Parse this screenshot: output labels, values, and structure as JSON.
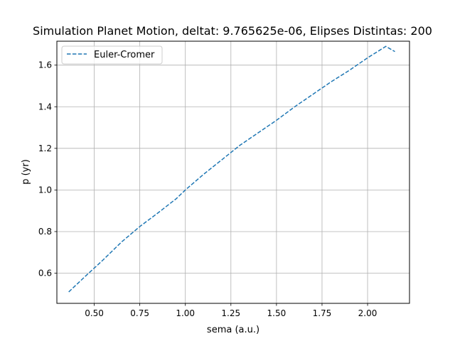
{
  "chart_data": {
    "type": "line",
    "title": "Simulation Planet Motion, deltat: 9.765625e-06, Elipses Distintas: 200",
    "xlabel": "sema (a.u.)",
    "ylabel": "p (yr)",
    "xlim": [
      0.295,
      2.23
    ],
    "ylim": [
      0.455,
      1.715
    ],
    "xticks": [
      0.5,
      0.75,
      1.0,
      1.25,
      1.5,
      1.75,
      2.0
    ],
    "xtick_labels": [
      "0.50",
      "0.75",
      "1.00",
      "1.25",
      "1.50",
      "1.75",
      "2.00"
    ],
    "yticks": [
      0.6,
      0.8,
      1.0,
      1.2,
      1.4,
      1.6
    ],
    "ytick_labels": [
      "0.6",
      "0.8",
      "1.0",
      "1.2",
      "1.4",
      "1.6"
    ],
    "grid": true,
    "legend_position": "upper-left",
    "series": [
      {
        "name": "Euler-Cromer",
        "style": "dashed",
        "color": "#1f77b4",
        "x": [
          0.36,
          0.45,
          0.55,
          0.65,
          0.75,
          0.85,
          0.95,
          1.0,
          1.1,
          1.2,
          1.3,
          1.4,
          1.5,
          1.6,
          1.7,
          1.8,
          1.9,
          2.0,
          2.1,
          2.15
        ],
        "y": [
          0.51,
          0.584,
          0.665,
          0.75,
          0.824,
          0.89,
          0.958,
          1.0,
          1.075,
          1.145,
          1.215,
          1.275,
          1.335,
          1.4,
          1.46,
          1.52,
          1.575,
          1.635,
          1.69,
          1.665
        ]
      }
    ]
  }
}
